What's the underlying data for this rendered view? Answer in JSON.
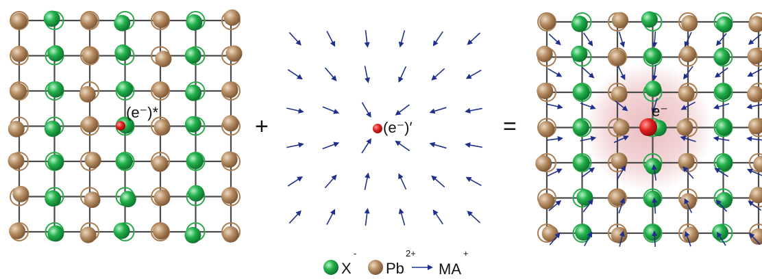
{
  "panels": {
    "left": {
      "electron_label": "(e⁻)*"
    },
    "middle": {
      "electron_label": "(e⁻)′"
    },
    "right": {
      "electron_label": "e⁻"
    }
  },
  "operators": {
    "plus": "+",
    "equals": "="
  },
  "legend": {
    "x": {
      "label": "X",
      "charge": "-"
    },
    "pb": {
      "label": "Pb",
      "charge": "2+"
    },
    "ma": {
      "label": "MA",
      "charge": "+"
    }
  },
  "colors": {
    "x_ion": "#22b14c",
    "pb_ion": "#a97d52",
    "grid": "#4a4a4a",
    "electron": "#e01e1e",
    "arrow": "#1f2f8a",
    "polaron_glow": "#e8b4b8"
  }
}
